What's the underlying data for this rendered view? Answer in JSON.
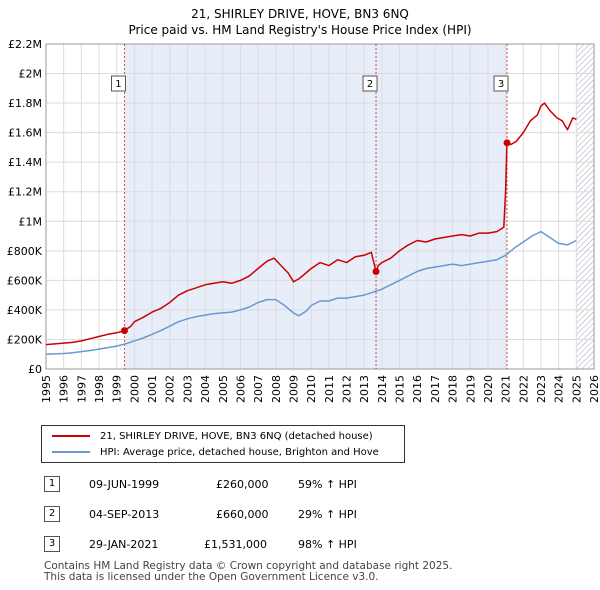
{
  "chart_data": {
    "type": "line",
    "title": "21, SHIRLEY DRIVE, HOVE, BN3 6NQ",
    "subtitle": "Price paid vs. HM Land Registry's House Price Index (HPI)",
    "xlabel": "",
    "ylabel": "",
    "xlim": [
      1995,
      2026
    ],
    "ylim": [
      0,
      2200000
    ],
    "x_ticks": [
      "1995",
      "1996",
      "1997",
      "1998",
      "1999",
      "2000",
      "2001",
      "2002",
      "2003",
      "2004",
      "2005",
      "2006",
      "2007",
      "2008",
      "2009",
      "2010",
      "2011",
      "2012",
      "2013",
      "2014",
      "2015",
      "2016",
      "2017",
      "2018",
      "2019",
      "2020",
      "2021",
      "2022",
      "2023",
      "2024",
      "2025",
      "2026"
    ],
    "y_ticks": [
      {
        "value": 0,
        "label": "£0"
      },
      {
        "value": 200000,
        "label": "£200K"
      },
      {
        "value": 400000,
        "label": "£400K"
      },
      {
        "value": 600000,
        "label": "£600K"
      },
      {
        "value": 800000,
        "label": "£800K"
      },
      {
        "value": 1000000,
        "label": "£1M"
      },
      {
        "value": 1200000,
        "label": "£1.2M"
      },
      {
        "value": 1400000,
        "label": "£1.4M"
      },
      {
        "value": 1600000,
        "label": "£1.6M"
      },
      {
        "value": 1800000,
        "label": "£1.8M"
      },
      {
        "value": 2000000,
        "label": "£2M"
      },
      {
        "value": 2200000,
        "label": "£2.2M"
      }
    ],
    "grid": true,
    "shaded_region": {
      "from": 1999.44,
      "to": 2021.08
    },
    "hatch_region": {
      "from": 2025.0,
      "to": 2026.0
    },
    "series": [
      {
        "name": "21, SHIRLEY DRIVE, HOVE, BN3 6NQ (detached house)",
        "color": "#cc0000",
        "x": [
          1995.0,
          1995.5,
          1996.0,
          1996.5,
          1997.0,
          1997.5,
          1998.0,
          1998.5,
          1999.0,
          1999.44,
          1999.8,
          2000.0,
          2000.5,
          2001.0,
          2001.5,
          2002.0,
          2002.5,
          2003.0,
          2003.5,
          2004.0,
          2004.5,
          2005.0,
          2005.5,
          2006.0,
          2006.5,
          2007.0,
          2007.5,
          2007.9,
          2008.3,
          2008.7,
          2009.0,
          2009.3,
          2009.7,
          2010.0,
          2010.5,
          2011.0,
          2011.5,
          2012.0,
          2012.5,
          2013.0,
          2013.4,
          2013.67,
          2013.8,
          2014.0,
          2014.5,
          2015.0,
          2015.5,
          2016.0,
          2016.5,
          2017.0,
          2017.5,
          2018.0,
          2018.5,
          2019.0,
          2019.5,
          2020.0,
          2020.5,
          2020.9,
          2021.0,
          2021.08,
          2021.3,
          2021.6,
          2022.0,
          2022.4,
          2022.8,
          2023.0,
          2023.2,
          2023.5,
          2023.9,
          2024.2,
          2024.5,
          2024.8,
          2025.0
        ],
        "values": [
          165000,
          170000,
          175000,
          180000,
          190000,
          205000,
          220000,
          235000,
          245000,
          260000,
          290000,
          320000,
          350000,
          385000,
          410000,
          450000,
          500000,
          530000,
          550000,
          570000,
          580000,
          590000,
          580000,
          600000,
          630000,
          680000,
          730000,
          750000,
          700000,
          650000,
          590000,
          610000,
          650000,
          680000,
          720000,
          700000,
          740000,
          720000,
          760000,
          770000,
          790000,
          660000,
          700000,
          720000,
          750000,
          800000,
          840000,
          870000,
          860000,
          880000,
          890000,
          900000,
          910000,
          900000,
          920000,
          920000,
          930000,
          960000,
          1200000,
          1531000,
          1520000,
          1540000,
          1600000,
          1680000,
          1720000,
          1780000,
          1800000,
          1750000,
          1700000,
          1680000,
          1620000,
          1700000,
          1690000
        ]
      },
      {
        "name": "HPI: Average price, detached house, Brighton and Hove",
        "color": "#6a98d0",
        "x": [
          1995.0,
          1995.5,
          1996.0,
          1996.5,
          1997.0,
          1997.5,
          1998.0,
          1998.5,
          1999.0,
          1999.5,
          2000.0,
          2000.5,
          2001.0,
          2001.5,
          2002.0,
          2002.5,
          2003.0,
          2003.5,
          2004.0,
          2004.5,
          2005.0,
          2005.5,
          2006.0,
          2006.5,
          2007.0,
          2007.5,
          2008.0,
          2008.5,
          2009.0,
          2009.3,
          2009.7,
          2010.0,
          2010.5,
          2011.0,
          2011.5,
          2012.0,
          2012.5,
          2013.0,
          2013.5,
          2014.0,
          2014.5,
          2015.0,
          2015.5,
          2016.0,
          2016.5,
          2017.0,
          2017.5,
          2018.0,
          2018.5,
          2019.0,
          2019.5,
          2020.0,
          2020.5,
          2021.0,
          2021.5,
          2022.0,
          2022.5,
          2023.0,
          2023.5,
          2024.0,
          2024.5,
          2025.0
        ],
        "values": [
          100000,
          102000,
          105000,
          110000,
          118000,
          125000,
          135000,
          145000,
          155000,
          170000,
          190000,
          210000,
          235000,
          260000,
          290000,
          320000,
          340000,
          355000,
          365000,
          375000,
          380000,
          385000,
          400000,
          420000,
          450000,
          470000,
          470000,
          430000,
          380000,
          360000,
          390000,
          430000,
          460000,
          460000,
          480000,
          480000,
          490000,
          500000,
          520000,
          540000,
          570000,
          600000,
          630000,
          660000,
          680000,
          690000,
          700000,
          710000,
          700000,
          710000,
          720000,
          730000,
          740000,
          770000,
          820000,
          860000,
          900000,
          930000,
          890000,
          850000,
          840000,
          870000
        ]
      }
    ],
    "sale_markers": [
      {
        "id": "1",
        "x": 1999.44,
        "value": 260000
      },
      {
        "id": "2",
        "x": 2013.67,
        "value": 660000
      },
      {
        "id": "3",
        "x": 2021.08,
        "value": 1531000
      }
    ]
  },
  "legend": {
    "entries": [
      {
        "label": "21, SHIRLEY DRIVE, HOVE, BN3 6NQ (detached house)",
        "color": "#cc0000"
      },
      {
        "label": "HPI: Average price, detached house, Brighton and Hove",
        "color": "#6a98d0"
      }
    ]
  },
  "sales": [
    {
      "num": "1",
      "date": "09-JUN-1999",
      "price": "£260,000",
      "hpi": "59% ↑ HPI"
    },
    {
      "num": "2",
      "date": "04-SEP-2013",
      "price": "£660,000",
      "hpi": "29% ↑ HPI"
    },
    {
      "num": "3",
      "date": "29-JAN-2021",
      "price": "£1,531,000",
      "hpi": "98% ↑ HPI"
    }
  ],
  "footer": {
    "line1": "Contains HM Land Registry data © Crown copyright and database right 2025.",
    "line2": "This data is licensed under the Open Government Licence v3.0."
  }
}
